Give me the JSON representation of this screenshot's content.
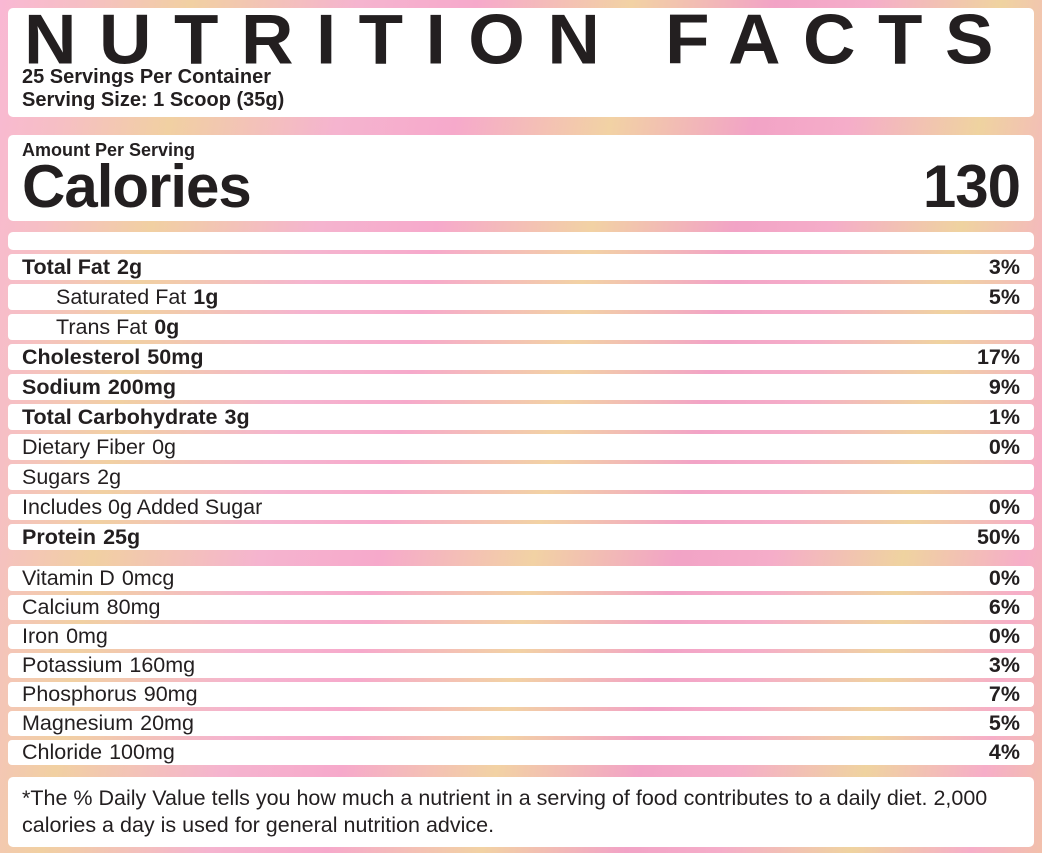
{
  "label": {
    "title": "NUTRITION FACTS",
    "servings_per_container": "25 Servings Per Container",
    "serving_size": "Serving Size: 1 Scoop (35g)",
    "amount_per_serving": "Amount Per Serving",
    "calories": {
      "label": "Calories",
      "value": "130"
    },
    "nutrients": [
      {
        "name": "Total Fat",
        "amount": "2g",
        "dv": "3%"
      },
      {
        "name": "Saturated Fat",
        "amount": "1g",
        "dv": "5%"
      },
      {
        "name": "Trans Fat",
        "amount": "0g",
        "dv": ""
      },
      {
        "name": "Cholesterol",
        "amount": "50mg",
        "dv": "17%"
      },
      {
        "name": "Sodium",
        "amount": "200mg",
        "dv": "9%"
      },
      {
        "name": "Total Carbohydrate",
        "amount": "3g",
        "dv": "1%"
      },
      {
        "name": "Dietary Fiber",
        "amount": "0g",
        "dv": "0%"
      },
      {
        "name": "Sugars",
        "amount": "2g",
        "dv": ""
      },
      {
        "name": "Includes 0g Added Sugar",
        "amount": "",
        "dv": "0%"
      },
      {
        "name": "Protein",
        "amount": "25g",
        "dv": "50%"
      }
    ],
    "minerals": [
      {
        "name": "Vitamin D",
        "amount": "0mcg",
        "dv": "0%"
      },
      {
        "name": "Calcium",
        "amount": "80mg",
        "dv": "6%"
      },
      {
        "name": "Iron",
        "amount": "0mg",
        "dv": "0%"
      },
      {
        "name": "Potassium",
        "amount": "160mg",
        "dv": "3%"
      },
      {
        "name": "Phosphorus",
        "amount": "90mg",
        "dv": "7%"
      },
      {
        "name": "Magnesium",
        "amount": "20mg",
        "dv": "5%"
      },
      {
        "name": "Chloride",
        "amount": "100mg",
        "dv": "4%"
      }
    ],
    "footnote": "*The % Daily Value tells you how much a nutrient in a serving of food contributes to a daily diet. 2,000 calories a day is used for general nutrition advice.",
    "colors": {
      "pink": "#f6aecd",
      "yellow": "#f1d0a0",
      "text": "#231f20",
      "panel": "#ffffff"
    }
  }
}
